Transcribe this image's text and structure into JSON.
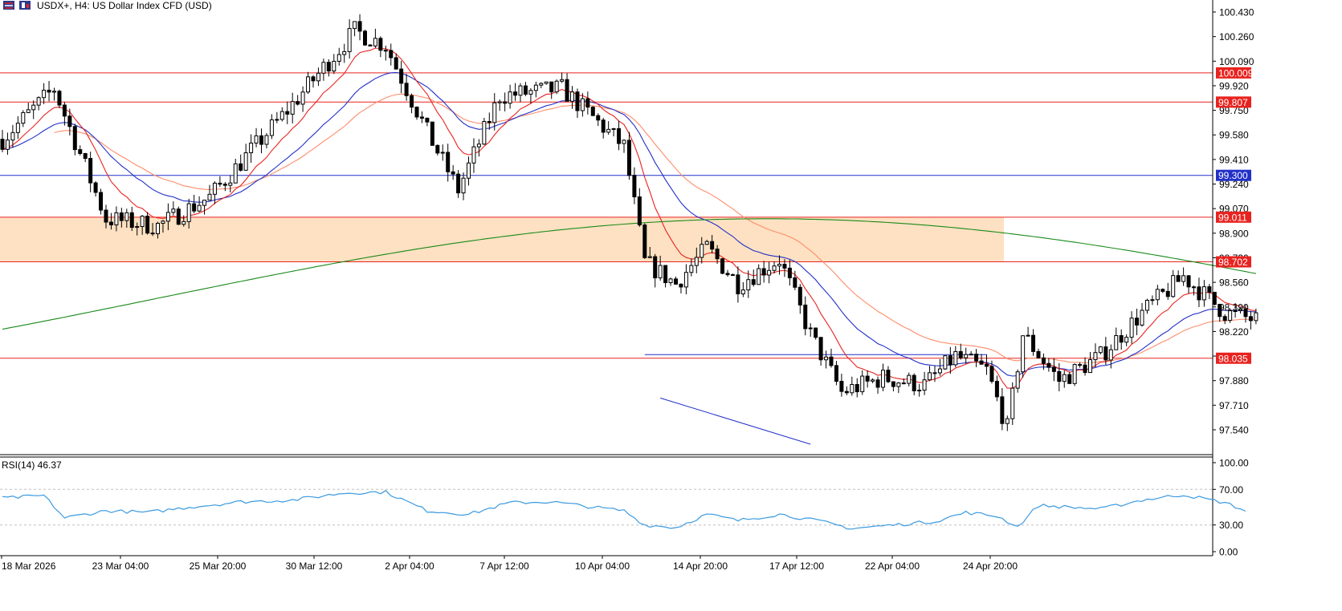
{
  "header": {
    "symbol_title": "USDX+, H4:  US Dollar Index CFD (USD)",
    "icons": [
      "bars-icon",
      "chart-type-icon"
    ]
  },
  "colors": {
    "bull_body": "#ffffff",
    "bear_body": "#000000",
    "ma_fast": "#e8231f",
    "ma_mid": "#2230c8",
    "ma_slow": "#ff8c6a",
    "ma_long": "#1a8a1a",
    "level_red": "#e8231f",
    "level_blue": "#2230c8",
    "zone_fill": "#fde1c2",
    "rsi_line": "#3a9ae0",
    "grid_dash": "#c0c0c0"
  },
  "chart_data": [
    {
      "type": "candlestick",
      "title": "USDX+, H4:  US Dollar Index CFD (USD)",
      "y_ticks": [
        "100.430",
        "100.260",
        "100.090",
        "99.920",
        "99.750",
        "99.580",
        "99.410",
        "99.240",
        "99.070",
        "98.900",
        "98.730",
        "98.560",
        "98.390",
        "98.220",
        "98.050",
        "97.880",
        "97.710",
        "97.540"
      ],
      "ylim": [
        97.4,
        100.55
      ],
      "x_ticks": [
        "18 Mar 2026",
        "23 Mar 04:00",
        "25 Mar 20:00",
        "30 Mar 12:00",
        "2 Apr 04:00",
        "7 Apr 12:00",
        "10 Apr 04:00",
        "14 Apr 20:00",
        "17 Apr 12:00",
        "22 Apr 04:00",
        "24 Apr 20:00"
      ],
      "levels": [
        {
          "price": 100.009,
          "label": "100.009",
          "color": "red"
        },
        {
          "price": 99.807,
          "label": "99.807",
          "color": "red"
        },
        {
          "price": 99.3,
          "label": "99.300",
          "color": "blue"
        },
        {
          "price": 99.011,
          "label": "99.011",
          "color": "red"
        },
        {
          "price": 98.702,
          "label": "98.702",
          "color": "red"
        },
        {
          "price": 98.035,
          "label": "98.035",
          "color": "red"
        }
      ],
      "zone": {
        "from": 98.702,
        "to": 99.011
      },
      "key_points": [
        {
          "bar": 0,
          "price": 99.55
        },
        {
          "bar": 10,
          "price": 99.9
        },
        {
          "bar": 20,
          "price": 99.0
        },
        {
          "bar": 30,
          "price": 98.95
        },
        {
          "bar": 40,
          "price": 99.15
        },
        {
          "bar": 55,
          "price": 99.75
        },
        {
          "bar": 68,
          "price": 100.3
        },
        {
          "bar": 74,
          "price": 100.2
        },
        {
          "bar": 82,
          "price": 99.6
        },
        {
          "bar": 88,
          "price": 99.2
        },
        {
          "bar": 96,
          "price": 99.85
        },
        {
          "bar": 108,
          "price": 99.9
        },
        {
          "bar": 114,
          "price": 99.7
        },
        {
          "bar": 120,
          "price": 99.5
        },
        {
          "bar": 124,
          "price": 98.7
        },
        {
          "bar": 130,
          "price": 98.55
        },
        {
          "bar": 136,
          "price": 98.8
        },
        {
          "bar": 142,
          "price": 98.55
        },
        {
          "bar": 150,
          "price": 98.72
        },
        {
          "bar": 156,
          "price": 98.2
        },
        {
          "bar": 162,
          "price": 97.8
        },
        {
          "bar": 170,
          "price": 97.9
        },
        {
          "bar": 178,
          "price": 97.85
        },
        {
          "bar": 184,
          "price": 98.05
        },
        {
          "bar": 190,
          "price": 97.95
        },
        {
          "bar": 194,
          "price": 97.55
        },
        {
          "bar": 197,
          "price": 98.2
        },
        {
          "bar": 204,
          "price": 97.88
        },
        {
          "bar": 212,
          "price": 98.05
        },
        {
          "bar": 220,
          "price": 98.35
        },
        {
          "bar": 228,
          "price": 98.6
        },
        {
          "bar": 236,
          "price": 98.35
        },
        {
          "bar": 242,
          "price": 98.3
        }
      ]
    },
    {
      "type": "line",
      "title": "RSI(14) 46.37",
      "y_ticks": [
        "100.00",
        "70.00",
        "30.00",
        "0.00"
      ],
      "ylim": [
        0,
        100
      ],
      "guides": [
        70,
        30
      ],
      "key_points": [
        {
          "bar": 0,
          "value": 60
        },
        {
          "bar": 8,
          "value": 63
        },
        {
          "bar": 12,
          "value": 38
        },
        {
          "bar": 20,
          "value": 46
        },
        {
          "bar": 28,
          "value": 44
        },
        {
          "bar": 36,
          "value": 50
        },
        {
          "bar": 46,
          "value": 56
        },
        {
          "bar": 56,
          "value": 58
        },
        {
          "bar": 66,
          "value": 66
        },
        {
          "bar": 74,
          "value": 67
        },
        {
          "bar": 82,
          "value": 46
        },
        {
          "bar": 90,
          "value": 42
        },
        {
          "bar": 98,
          "value": 55
        },
        {
          "bar": 106,
          "value": 56
        },
        {
          "bar": 114,
          "value": 50
        },
        {
          "bar": 120,
          "value": 46
        },
        {
          "bar": 124,
          "value": 30
        },
        {
          "bar": 130,
          "value": 27
        },
        {
          "bar": 136,
          "value": 42
        },
        {
          "bar": 142,
          "value": 35
        },
        {
          "bar": 150,
          "value": 42
        },
        {
          "bar": 158,
          "value": 34
        },
        {
          "bar": 164,
          "value": 26
        },
        {
          "bar": 172,
          "value": 30
        },
        {
          "bar": 180,
          "value": 34
        },
        {
          "bar": 186,
          "value": 44
        },
        {
          "bar": 192,
          "value": 40
        },
        {
          "bar": 196,
          "value": 28
        },
        {
          "bar": 200,
          "value": 52
        },
        {
          "bar": 206,
          "value": 50
        },
        {
          "bar": 212,
          "value": 48
        },
        {
          "bar": 220,
          "value": 58
        },
        {
          "bar": 228,
          "value": 64
        },
        {
          "bar": 236,
          "value": 55
        },
        {
          "bar": 240,
          "value": 46
        }
      ]
    }
  ]
}
